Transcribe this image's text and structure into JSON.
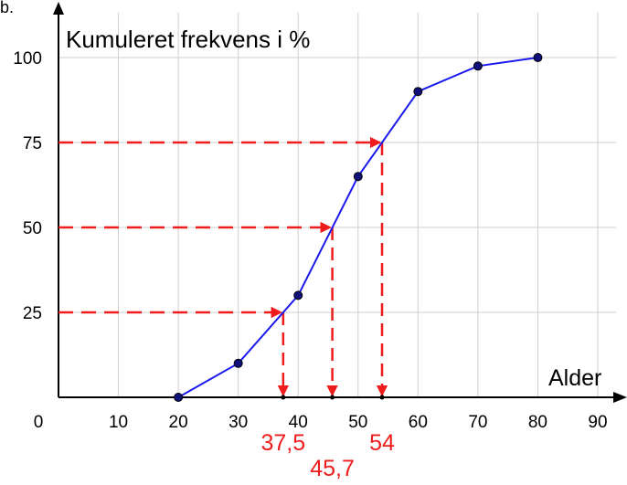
{
  "corner_fragment": "b.",
  "chart_data": {
    "type": "line",
    "title": "",
    "ylabel": "Kumuleret frekvens i %",
    "xlabel": "Alder",
    "xlim": [
      0,
      90
    ],
    "ylim": [
      0,
      100
    ],
    "x_ticks": [
      0,
      10,
      20,
      30,
      40,
      50,
      60,
      70,
      80,
      90
    ],
    "x_tick_labels": [
      "0",
      "10",
      "20",
      "30",
      "40",
      "50",
      "60",
      "70",
      "80",
      "90"
    ],
    "y_ticks": [
      25,
      50,
      75,
      100
    ],
    "y_tick_labels": [
      "25",
      "50",
      "75",
      "100"
    ],
    "grid": true,
    "series": [
      {
        "color": "#1a1aee",
        "points": [
          {
            "x": 20,
            "y": 0
          },
          {
            "x": 30,
            "y": 10
          },
          {
            "x": 40,
            "y": 30
          },
          {
            "x": 50,
            "y": 65
          },
          {
            "x": 60,
            "y": 90
          },
          {
            "x": 70,
            "y": 97.5
          },
          {
            "x": 80,
            "y": 100
          }
        ]
      }
    ],
    "annotations": {
      "color": "#ee1c1c",
      "lookups": [
        {
          "y": 25,
          "x": 37.5,
          "label": "37,5"
        },
        {
          "y": 50,
          "x": 45.7,
          "label": "45,7"
        },
        {
          "y": 75,
          "x": 54,
          "label": "54"
        }
      ]
    }
  }
}
